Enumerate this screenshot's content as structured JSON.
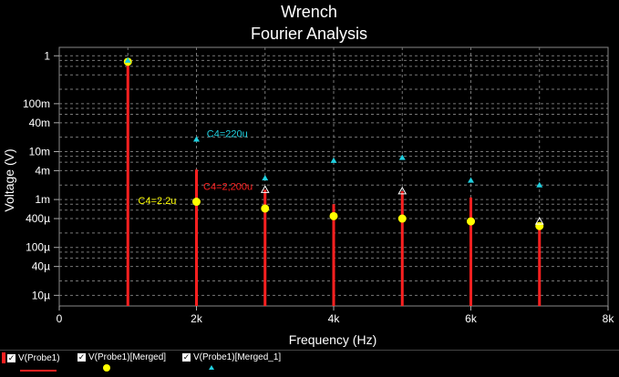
{
  "chart_data": {
    "type": "scatter",
    "title": "Wrench",
    "subtitle": "Fourier Analysis",
    "xlabel": "Frequency (Hz)",
    "ylabel": "Voltage (V)",
    "xlim": [
      0,
      8000
    ],
    "ylim": [
      6e-06,
      1.5
    ],
    "yscale": "log",
    "grid": true,
    "x_ticks": [
      {
        "value": 0,
        "label": "0"
      },
      {
        "value": 2000,
        "label": "2k"
      },
      {
        "value": 4000,
        "label": "4k"
      },
      {
        "value": 6000,
        "label": "6k"
      },
      {
        "value": 8000,
        "label": "8k"
      }
    ],
    "y_ticks": [
      {
        "value": 1,
        "label": "1"
      },
      {
        "value": 0.1,
        "label": "100m"
      },
      {
        "value": 0.04,
        "label": "40m"
      },
      {
        "value": 0.01,
        "label": "10m"
      },
      {
        "value": 0.004,
        "label": "4m"
      },
      {
        "value": 0.001,
        "label": "1m"
      },
      {
        "value": 0.0004,
        "label": "400µ"
      },
      {
        "value": 0.0001,
        "label": "100µ"
      },
      {
        "value": 4e-05,
        "label": "40µ"
      },
      {
        "value": 1e-05,
        "label": "10µ"
      }
    ],
    "series": [
      {
        "name": "V(Probe1)",
        "style": "stem",
        "color": "#ff2020",
        "x": [
          1000,
          2000,
          3000,
          4000,
          5000,
          6000,
          7000
        ],
        "values": [
          0.7,
          0.0042,
          0.0016,
          0.0008,
          0.0015,
          0.0011,
          0.0003
        ]
      },
      {
        "name": "V(Probe1)[Merged]",
        "style": "circle",
        "color": "#ffff00",
        "x": [
          1000,
          2000,
          3000,
          4000,
          5000,
          6000,
          7000
        ],
        "values": [
          0.75,
          0.0009,
          0.00065,
          0.00045,
          0.0004,
          0.00035,
          0.00028
        ]
      },
      {
        "name": "V(Probe1)[Merged_1]",
        "style": "triangle",
        "color": "#20d0e0",
        "x": [
          1000,
          2000,
          3000,
          4000,
          5000,
          6000,
          7000
        ],
        "values": [
          0.8,
          0.018,
          0.0028,
          0.0065,
          0.0075,
          0.0025,
          0.002
        ]
      }
    ],
    "extra_markers": {
      "style": "triangle-outline",
      "color": "#ffffff",
      "x": [
        3000,
        5000,
        7000
      ],
      "values": [
        0.0016,
        0.0015,
        0.00035
      ]
    },
    "annotations": [
      {
        "text": "C4=220u",
        "x": 2150,
        "y": 0.02,
        "color": "#20d0e0"
      },
      {
        "text": "C4=2,200u",
        "x": 2100,
        "y": 0.0016,
        "color": "#ff2020"
      },
      {
        "text": "C4=2.2u",
        "x": 1150,
        "y": 0.0008,
        "color": "#ffff00"
      }
    ]
  },
  "legend": {
    "items": [
      {
        "label": "V(Probe1)",
        "check": "✓"
      },
      {
        "label": "V(Probe1)[Merged]",
        "check": "✓"
      },
      {
        "label": "V(Probe1)[Merged_1]",
        "check": "✓"
      }
    ]
  }
}
